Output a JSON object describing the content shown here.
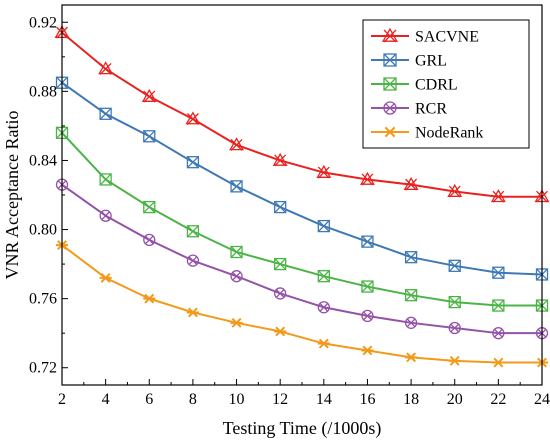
{
  "chart_data": {
    "type": "line",
    "xlabel": "Testing Time (/1000s)",
    "ylabel": "VNR Acceptance Ratio",
    "xlim": [
      2,
      24
    ],
    "ylim": [
      0.71,
      0.93
    ],
    "x_ticks": [
      2,
      4,
      6,
      8,
      10,
      12,
      14,
      16,
      18,
      20,
      22,
      24
    ],
    "y_ticks": [
      0.72,
      0.76,
      0.8,
      0.84,
      0.88,
      0.92
    ],
    "y_tick_labels": [
      "0.72",
      "0.76",
      "0.80",
      "0.84",
      "0.88",
      "0.92"
    ],
    "grid": false,
    "legend_position": "top-right",
    "x": [
      2,
      4,
      6,
      8,
      10,
      12,
      14,
      16,
      18,
      20,
      22,
      24
    ],
    "series": [
      {
        "name": "SACVNE",
        "color": "#e8231f",
        "marker": "x-triangle",
        "values": [
          0.914,
          0.893,
          0.877,
          0.864,
          0.849,
          0.84,
          0.833,
          0.829,
          0.826,
          0.822,
          0.819,
          0.819
        ]
      },
      {
        "name": "GRL",
        "color": "#3e79b5",
        "marker": "x-square",
        "values": [
          0.885,
          0.867,
          0.854,
          0.839,
          0.825,
          0.813,
          0.802,
          0.793,
          0.784,
          0.779,
          0.775,
          0.774
        ]
      },
      {
        "name": "CDRL",
        "color": "#4bb446",
        "marker": "x-square",
        "values": [
          0.856,
          0.829,
          0.813,
          0.799,
          0.787,
          0.78,
          0.773,
          0.767,
          0.762,
          0.758,
          0.756,
          0.756
        ]
      },
      {
        "name": "RCR",
        "color": "#9452a8",
        "marker": "x-circle",
        "values": [
          0.826,
          0.808,
          0.794,
          0.782,
          0.773,
          0.763,
          0.755,
          0.75,
          0.746,
          0.743,
          0.74,
          0.74
        ]
      },
      {
        "name": "NodeRank",
        "color": "#f29a1a",
        "marker": "star",
        "values": [
          0.791,
          0.772,
          0.76,
          0.752,
          0.746,
          0.741,
          0.734,
          0.73,
          0.726,
          0.724,
          0.723,
          0.723
        ]
      }
    ]
  }
}
